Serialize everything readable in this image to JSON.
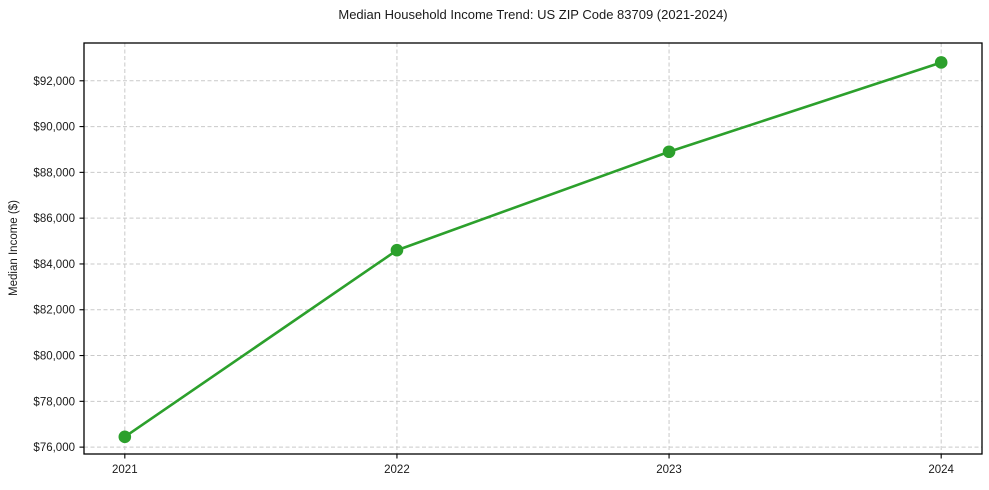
{
  "chart_data": {
    "type": "line",
    "title": "Median Household Income Trend: US ZIP Code 83709 (2021-2024)",
    "xlabel": "",
    "ylabel": "Median Income ($)",
    "x": [
      2021,
      2022,
      2023,
      2024
    ],
    "values": [
      76450,
      84600,
      88900,
      92800
    ],
    "xticks": [
      2021,
      2022,
      2023,
      2024
    ],
    "xtick_labels": [
      "2021",
      "2022",
      "2023",
      "2024"
    ],
    "yticks": [
      76000,
      78000,
      80000,
      82000,
      84000,
      86000,
      88000,
      90000,
      92000
    ],
    "ytick_labels": [
      "$76,000",
      "$78,000",
      "$80,000",
      "$82,000",
      "$84,000",
      "$86,000",
      "$88,000",
      "$90,000",
      "$92,000"
    ],
    "xlim": [
      2020.85,
      2024.15
    ],
    "ylim": [
      75700,
      93650
    ],
    "grid": true,
    "grid_style": "dashed",
    "legend": "none",
    "line_color": "#2ca02c",
    "marker": "circle",
    "colors": {
      "grid": "#c9c9c9",
      "axis": "#000000",
      "text": "#1a1a1a",
      "background": "#ffffff"
    }
  }
}
